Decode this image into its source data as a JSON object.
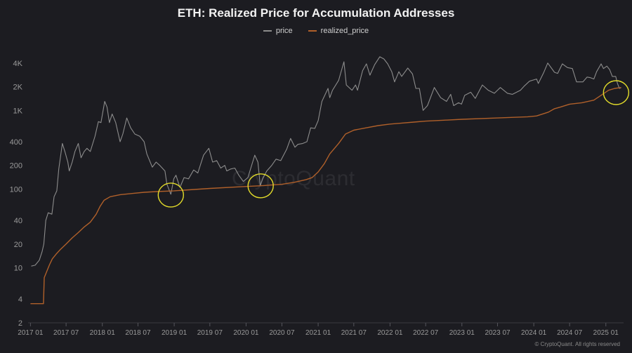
{
  "chart_data": {
    "type": "line",
    "title": "ETH: Realized Price for Accumulation Addresses",
    "y_scale": "log",
    "ylim": [
      2,
      6000
    ],
    "xlim": [
      "2016-12-20",
      "2025-04-01"
    ],
    "grid": false,
    "legend_position": "top-center",
    "y_ticks": [
      {
        "value": 2,
        "label": "2"
      },
      {
        "value": 4,
        "label": "4"
      },
      {
        "value": 10,
        "label": "10"
      },
      {
        "value": 20,
        "label": "20"
      },
      {
        "value": 40,
        "label": "40"
      },
      {
        "value": 100,
        "label": "100"
      },
      {
        "value": 200,
        "label": "200"
      },
      {
        "value": 400,
        "label": "400"
      },
      {
        "value": 1000,
        "label": "1K"
      },
      {
        "value": 2000,
        "label": "2K"
      },
      {
        "value": 4000,
        "label": "4K"
      }
    ],
    "x_ticks": [
      {
        "date": "2017-01-01",
        "label": "2017 01"
      },
      {
        "date": "2017-07-01",
        "label": "2017 07"
      },
      {
        "date": "2018-01-01",
        "label": "2018 01"
      },
      {
        "date": "2018-07-01",
        "label": "2018 07"
      },
      {
        "date": "2019-01-01",
        "label": "2019 01"
      },
      {
        "date": "2019-07-01",
        "label": "2019 07"
      },
      {
        "date": "2020-01-01",
        "label": "2020 01"
      },
      {
        "date": "2020-07-01",
        "label": "2020 07"
      },
      {
        "date": "2021-01-01",
        "label": "2021 01"
      },
      {
        "date": "2021-07-01",
        "label": "2021 07"
      },
      {
        "date": "2022-01-01",
        "label": "2022 01"
      },
      {
        "date": "2022-07-01",
        "label": "2022 07"
      },
      {
        "date": "2023-01-01",
        "label": "2023 01"
      },
      {
        "date": "2023-07-01",
        "label": "2023 07"
      },
      {
        "date": "2024-01-01",
        "label": "2024 01"
      },
      {
        "date": "2024-07-01",
        "label": "2024 07"
      },
      {
        "date": "2025-01-01",
        "label": "2025 01"
      }
    ],
    "series": [
      {
        "name": "price",
        "color": "#8c8c8c",
        "points": [
          [
            "2017-01-05",
            10.5
          ],
          [
            "2017-01-25",
            10.8
          ],
          [
            "2017-02-15",
            12.5
          ],
          [
            "2017-03-01",
            16
          ],
          [
            "2017-03-10",
            20
          ],
          [
            "2017-03-20",
            40
          ],
          [
            "2017-04-01",
            50
          ],
          [
            "2017-04-20",
            48
          ],
          [
            "2017-05-01",
            80
          ],
          [
            "2017-05-15",
            95
          ],
          [
            "2017-05-25",
            180
          ],
          [
            "2017-06-12",
            380
          ],
          [
            "2017-06-25",
            300
          ],
          [
            "2017-07-10",
            220
          ],
          [
            "2017-07-17",
            170
          ],
          [
            "2017-08-01",
            220
          ],
          [
            "2017-08-15",
            300
          ],
          [
            "2017-09-01",
            380
          ],
          [
            "2017-09-15",
            250
          ],
          [
            "2017-10-01",
            300
          ],
          [
            "2017-10-15",
            330
          ],
          [
            "2017-11-01",
            300
          ],
          [
            "2017-11-25",
            470
          ],
          [
            "2017-12-12",
            720
          ],
          [
            "2017-12-25",
            700
          ],
          [
            "2018-01-13",
            1300
          ],
          [
            "2018-01-25",
            1100
          ],
          [
            "2018-02-06",
            700
          ],
          [
            "2018-02-20",
            900
          ],
          [
            "2018-03-10",
            700
          ],
          [
            "2018-04-01",
            400
          ],
          [
            "2018-04-15",
            500
          ],
          [
            "2018-05-05",
            800
          ],
          [
            "2018-05-25",
            600
          ],
          [
            "2018-06-15",
            500
          ],
          [
            "2018-07-10",
            470
          ],
          [
            "2018-08-01",
            400
          ],
          [
            "2018-08-15",
            280
          ],
          [
            "2018-09-12",
            190
          ],
          [
            "2018-10-01",
            220
          ],
          [
            "2018-10-20",
            200
          ],
          [
            "2018-11-15",
            170
          ],
          [
            "2018-11-25",
            115
          ],
          [
            "2018-12-15",
            86
          ],
          [
            "2018-12-30",
            135
          ],
          [
            "2019-01-10",
            150
          ],
          [
            "2019-01-30",
            105
          ],
          [
            "2019-02-20",
            140
          ],
          [
            "2019-03-15",
            135
          ],
          [
            "2019-04-10",
            175
          ],
          [
            "2019-05-01",
            160
          ],
          [
            "2019-05-30",
            270
          ],
          [
            "2019-06-26",
            330
          ],
          [
            "2019-07-15",
            220
          ],
          [
            "2019-08-05",
            230
          ],
          [
            "2019-08-25",
            185
          ],
          [
            "2019-09-15",
            200
          ],
          [
            "2019-09-25",
            170
          ],
          [
            "2019-10-15",
            180
          ],
          [
            "2019-11-05",
            185
          ],
          [
            "2019-11-25",
            150
          ],
          [
            "2019-12-18",
            125
          ],
          [
            "2020-01-10",
            140
          ],
          [
            "2020-02-14",
            270
          ],
          [
            "2020-03-01",
            220
          ],
          [
            "2020-03-13",
            110
          ],
          [
            "2020-03-25",
            135
          ],
          [
            "2020-04-15",
            170
          ],
          [
            "2020-05-10",
            200
          ],
          [
            "2020-06-01",
            240
          ],
          [
            "2020-06-25",
            230
          ],
          [
            "2020-07-25",
            320
          ],
          [
            "2020-08-14",
            440
          ],
          [
            "2020-09-05",
            340
          ],
          [
            "2020-09-20",
            370
          ],
          [
            "2020-10-15",
            380
          ],
          [
            "2020-11-05",
            400
          ],
          [
            "2020-11-24",
            600
          ],
          [
            "2020-12-15",
            590
          ],
          [
            "2021-01-01",
            740
          ],
          [
            "2021-01-20",
            1300
          ],
          [
            "2021-02-20",
            1900
          ],
          [
            "2021-03-01",
            1450
          ],
          [
            "2021-03-15",
            1800
          ],
          [
            "2021-04-15",
            2400
          ],
          [
            "2021-05-12",
            4150
          ],
          [
            "2021-05-24",
            2100
          ],
          [
            "2021-06-22",
            1800
          ],
          [
            "2021-07-10",
            2100
          ],
          [
            "2021-07-20",
            1800
          ],
          [
            "2021-08-15",
            3200
          ],
          [
            "2021-09-03",
            3900
          ],
          [
            "2021-09-21",
            2800
          ],
          [
            "2021-10-15",
            3800
          ],
          [
            "2021-11-10",
            4800
          ],
          [
            "2021-12-01",
            4500
          ],
          [
            "2021-12-20",
            3900
          ],
          [
            "2022-01-10",
            3100
          ],
          [
            "2022-01-24",
            2300
          ],
          [
            "2022-02-15",
            3100
          ],
          [
            "2022-03-01",
            2700
          ],
          [
            "2022-04-01",
            3450
          ],
          [
            "2022-04-25",
            2900
          ],
          [
            "2022-05-12",
            1900
          ],
          [
            "2022-05-30",
            1900
          ],
          [
            "2022-06-18",
            1000
          ],
          [
            "2022-07-10",
            1150
          ],
          [
            "2022-08-14",
            1950
          ],
          [
            "2022-09-15",
            1450
          ],
          [
            "2022-10-15",
            1300
          ],
          [
            "2022-11-05",
            1600
          ],
          [
            "2022-11-20",
            1150
          ],
          [
            "2022-12-15",
            1250
          ],
          [
            "2022-12-30",
            1200
          ],
          [
            "2023-01-15",
            1550
          ],
          [
            "2023-02-15",
            1700
          ],
          [
            "2023-03-10",
            1420
          ],
          [
            "2023-04-15",
            2100
          ],
          [
            "2023-05-15",
            1800
          ],
          [
            "2023-06-15",
            1650
          ],
          [
            "2023-07-15",
            1950
          ],
          [
            "2023-08-20",
            1650
          ],
          [
            "2023-09-15",
            1600
          ],
          [
            "2023-10-25",
            1800
          ],
          [
            "2023-11-15",
            2050
          ],
          [
            "2023-12-10",
            2350
          ],
          [
            "2024-01-15",
            2500
          ],
          [
            "2024-01-24",
            2200
          ],
          [
            "2024-02-20",
            3000
          ],
          [
            "2024-03-12",
            4000
          ],
          [
            "2024-04-15",
            3050
          ],
          [
            "2024-05-01",
            2950
          ],
          [
            "2024-05-25",
            3900
          ],
          [
            "2024-06-20",
            3500
          ],
          [
            "2024-07-15",
            3400
          ],
          [
            "2024-08-05",
            2300
          ],
          [
            "2024-09-06",
            2300
          ],
          [
            "2024-09-28",
            2650
          ],
          [
            "2024-10-15",
            2600
          ],
          [
            "2024-11-01",
            2500
          ],
          [
            "2024-11-15",
            3100
          ],
          [
            "2024-12-08",
            3900
          ],
          [
            "2024-12-20",
            3400
          ],
          [
            "2025-01-06",
            3650
          ],
          [
            "2025-01-20",
            3300
          ],
          [
            "2025-02-03",
            2700
          ],
          [
            "2025-02-20",
            2700
          ],
          [
            "2025-03-01",
            2200
          ],
          [
            "2025-03-11",
            1900
          ],
          [
            "2025-03-20",
            1950
          ]
        ]
      },
      {
        "name": "realized_price",
        "color": "#b0602a",
        "points": [
          [
            "2017-01-01",
            3.5
          ],
          [
            "2017-03-08",
            3.5
          ],
          [
            "2017-03-12",
            7.5
          ],
          [
            "2017-03-25",
            9
          ],
          [
            "2017-04-08",
            11
          ],
          [
            "2017-04-22",
            13
          ],
          [
            "2017-05-12",
            15
          ],
          [
            "2017-06-01",
            17
          ],
          [
            "2017-07-01",
            20
          ],
          [
            "2017-08-01",
            24
          ],
          [
            "2017-09-01",
            28
          ],
          [
            "2017-10-01",
            33
          ],
          [
            "2017-11-01",
            38
          ],
          [
            "2017-12-01",
            48
          ],
          [
            "2017-12-20",
            60
          ],
          [
            "2018-01-10",
            72
          ],
          [
            "2018-02-10",
            80
          ],
          [
            "2018-04-01",
            85
          ],
          [
            "2018-06-01",
            88
          ],
          [
            "2018-08-01",
            91
          ],
          [
            "2018-10-01",
            93
          ],
          [
            "2019-01-01",
            95
          ],
          [
            "2019-07-01",
            102
          ],
          [
            "2020-01-01",
            108
          ],
          [
            "2020-04-01",
            111
          ],
          [
            "2020-07-01",
            115
          ],
          [
            "2020-09-01",
            122
          ],
          [
            "2020-11-01",
            132
          ],
          [
            "2020-12-01",
            140
          ],
          [
            "2021-01-01",
            165
          ],
          [
            "2021-02-01",
            210
          ],
          [
            "2021-03-01",
            280
          ],
          [
            "2021-04-15",
            380
          ],
          [
            "2021-05-20",
            500
          ],
          [
            "2021-07-01",
            560
          ],
          [
            "2021-09-01",
            600
          ],
          [
            "2021-11-01",
            640
          ],
          [
            "2022-01-01",
            670
          ],
          [
            "2022-03-01",
            690
          ],
          [
            "2022-05-01",
            710
          ],
          [
            "2022-07-01",
            730
          ],
          [
            "2022-10-01",
            750
          ],
          [
            "2023-01-01",
            770
          ],
          [
            "2023-07-01",
            800
          ],
          [
            "2023-12-01",
            830
          ],
          [
            "2024-01-15",
            850
          ],
          [
            "2024-03-15",
            950
          ],
          [
            "2024-04-15",
            1050
          ],
          [
            "2024-05-15",
            1100
          ],
          [
            "2024-07-01",
            1200
          ],
          [
            "2024-09-01",
            1250
          ],
          [
            "2024-11-01",
            1350
          ],
          [
            "2024-12-15",
            1600
          ],
          [
            "2025-01-15",
            1800
          ],
          [
            "2025-02-15",
            1900
          ],
          [
            "2025-03-20",
            1950
          ]
        ]
      }
    ],
    "annotations": [
      {
        "type": "circle",
        "date": "2018-12-15",
        "value": 84,
        "color": "#e3dc2a"
      },
      {
        "type": "circle",
        "date": "2020-03-15",
        "value": 110,
        "color": "#e3dc2a"
      },
      {
        "type": "circle",
        "date": "2025-02-22",
        "value": 1680,
        "color": "#e3dc2a"
      }
    ],
    "axis_text_color": "#9a9a9a"
  },
  "watermark": "CryptoQuant",
  "footer": "© CryptoQuant. All rights reserved"
}
